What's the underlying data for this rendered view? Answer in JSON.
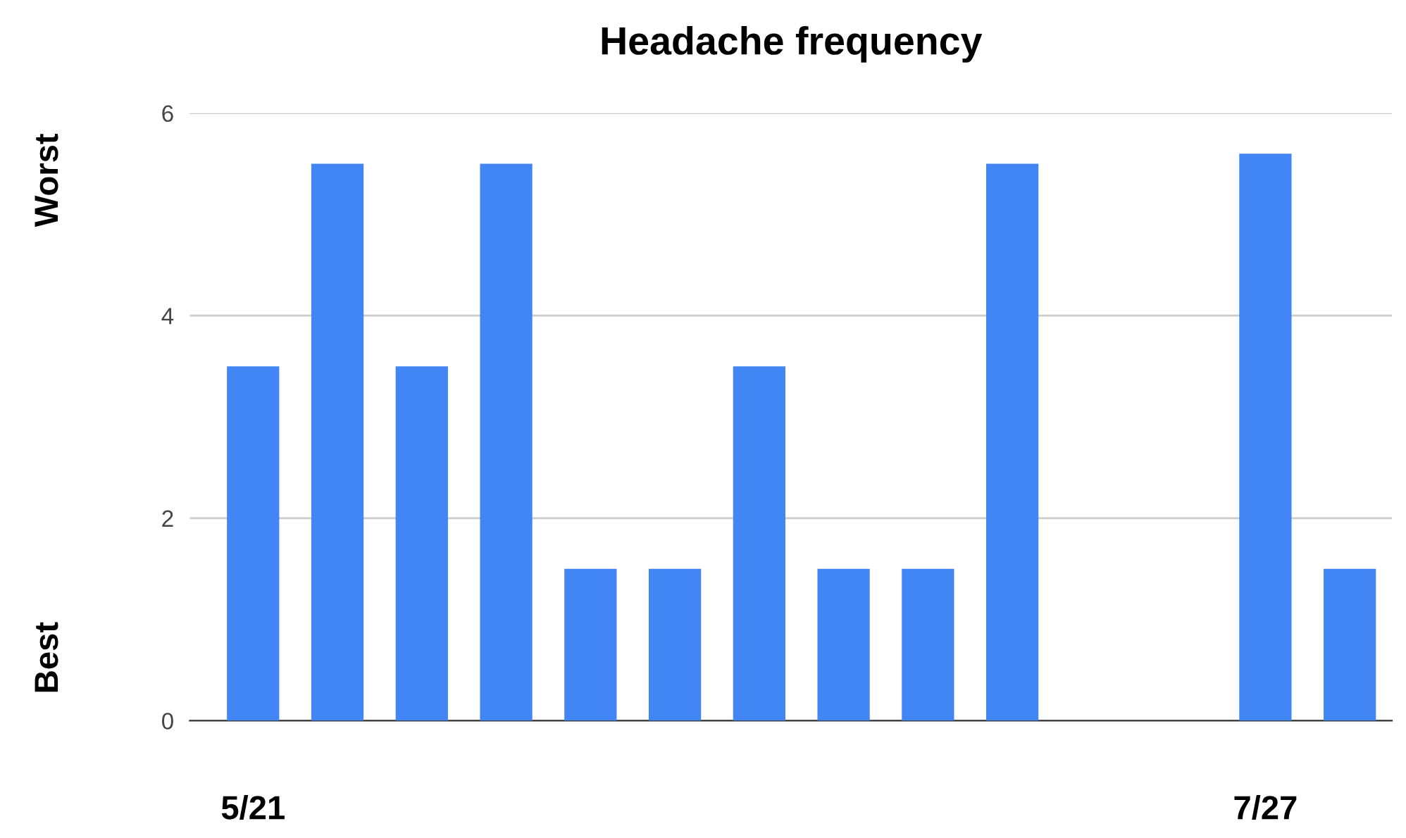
{
  "chart_data": {
    "type": "bar",
    "title": "Headache frequency",
    "categories": [
      "5/21",
      null,
      null,
      null,
      null,
      null,
      null,
      null,
      null,
      null,
      null,
      null,
      "7/27",
      null
    ],
    "values": [
      3.5,
      5.5,
      3.5,
      5.5,
      1.5,
      1.5,
      3.5,
      1.5,
      1.5,
      5.5,
      null,
      null,
      5.6,
      1.5
    ],
    "color": "#4285f4",
    "ylim": [
      0,
      6
    ],
    "yticks": [
      0,
      2,
      4,
      6
    ],
    "grid": "y",
    "annotations": [
      "Worst",
      "Best"
    ]
  }
}
